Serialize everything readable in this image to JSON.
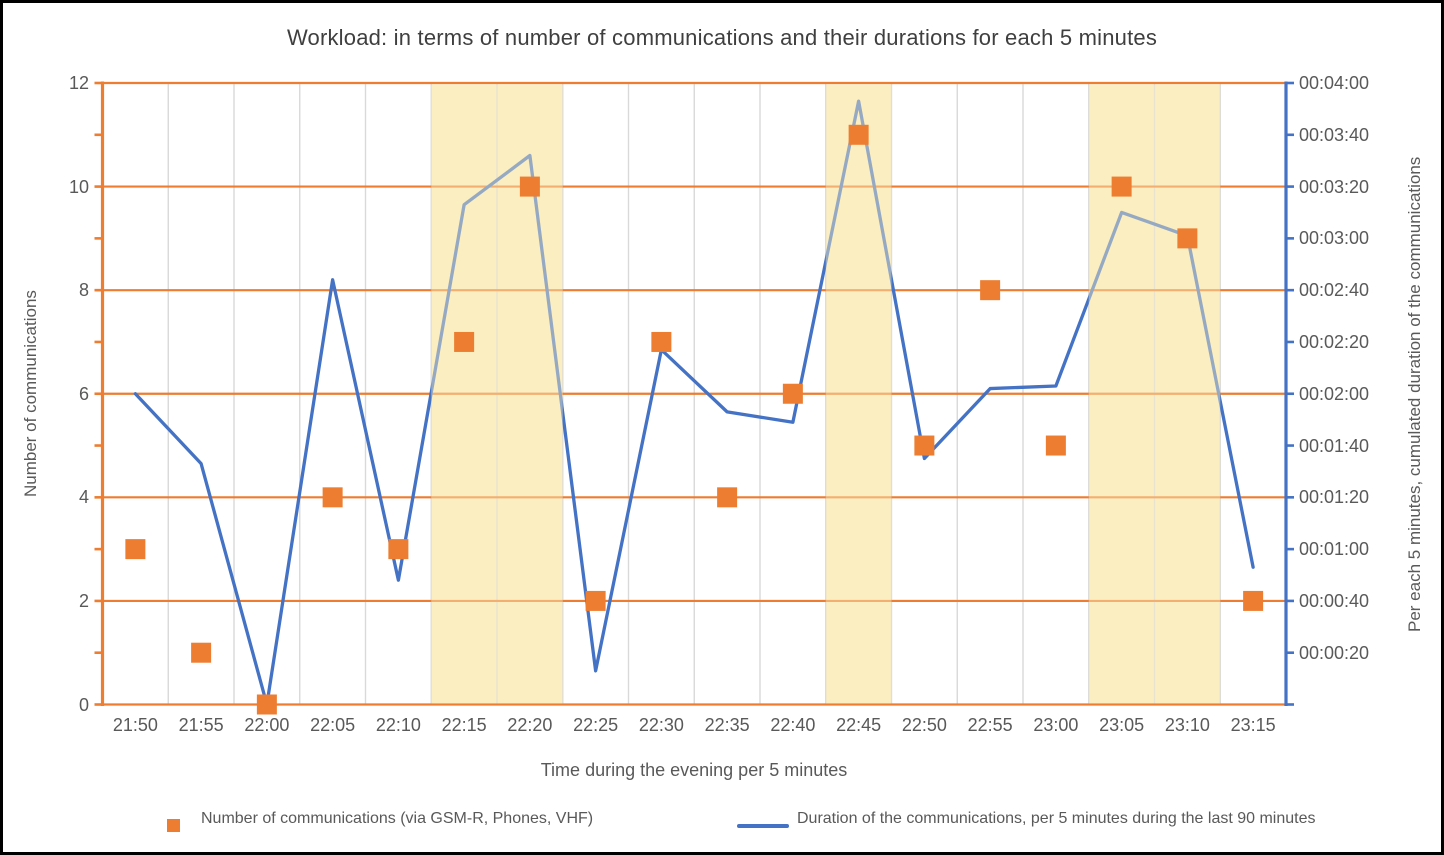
{
  "title": "Workload: in terms of number of communications and their durations for each 5 minutes",
  "colors": {
    "orange": "#ED7D31",
    "blue": "#4472C4",
    "band_fill": "#FBEEC1",
    "vertical_grid": "#D9D9D9",
    "axis_text": "#595959",
    "title_text": "#3F3F3F"
  },
  "legend": {
    "item1": "Number of communications (via GSM-R, Phones, VHF)",
    "item2": "Duration of the communications, per 5 minutes during the last 90 minutes"
  },
  "chart_data": {
    "type": "line",
    "subtype": "combo: square-marker scatter (left axis) + line (right axis)",
    "title": "Workload: in terms of number of communications and their durations for each 5 minutes",
    "categories": [
      "21:50",
      "21:55",
      "22:00",
      "22:05",
      "22:10",
      "22:15",
      "22:20",
      "22:25",
      "22:30",
      "22:35",
      "22:40",
      "22:45",
      "22:50",
      "22:55",
      "23:00",
      "23:05",
      "23:10",
      "23:15"
    ],
    "series": [
      {
        "name": "Number of communications (via GSM-R, Phones, VHF)",
        "axis": "left",
        "marker": "square",
        "color": "#ED7D31",
        "values": [
          3,
          1,
          0,
          4,
          3,
          7,
          10,
          2,
          7,
          4,
          6,
          11,
          5,
          8,
          5,
          10,
          9,
          2
        ]
      },
      {
        "name": "Duration of the communications, per 5 minutes during the last 90 minutes",
        "axis": "right",
        "marker": "none",
        "color": "#4472C4",
        "values_seconds": [
          120,
          93,
          0,
          164,
          48,
          193,
          212,
          13,
          137,
          113,
          109,
          233,
          95,
          122,
          123,
          190,
          181,
          53
        ],
        "values_hhmmss": [
          "00:02:00",
          "00:01:33",
          "00:00:00",
          "00:02:44",
          "00:00:48",
          "00:03:13",
          "00:03:32",
          "00:00:13",
          "00:02:17",
          "00:01:53",
          "00:01:49",
          "00:03:53",
          "00:01:35",
          "00:02:02",
          "00:02:03",
          "00:03:10",
          "00:03:01",
          "00:00:53"
        ]
      }
    ],
    "left_axis": {
      "title": "Number of communications",
      "min": 0,
      "max": 12,
      "label_step": 2,
      "minor_tick_step": 1,
      "labels": [
        "0",
        "2",
        "4",
        "6",
        "8",
        "10",
        "12"
      ]
    },
    "right_axis": {
      "title": "Per each 5 minutes, cumulated duration of the communications",
      "min_seconds": 0,
      "max_seconds": 240,
      "tick_step_seconds": 20,
      "labels": [
        "00:00:20",
        "00:00:40",
        "00:01:00",
        "00:01:20",
        "00:01:40",
        "00:02:00",
        "00:02:20",
        "00:02:40",
        "00:03:00",
        "00:03:20",
        "00:03:40",
        "00:04:00"
      ]
    },
    "x_axis": {
      "title": "Time during the evening per 5 minutes"
    },
    "highlight_bands": [
      {
        "from": "22:15",
        "to": "22:20",
        "start_index": 5,
        "end_index": 6
      },
      {
        "from": "22:45",
        "to": "22:45",
        "start_index": 11,
        "end_index": 11
      },
      {
        "from": "23:05",
        "to": "23:10",
        "start_index": 15,
        "end_index": 16
      }
    ],
    "grid": {
      "horizontal": "orange every 2 units / 40 s",
      "vertical": "light gray between categories"
    },
    "legend_position": "bottom"
  }
}
